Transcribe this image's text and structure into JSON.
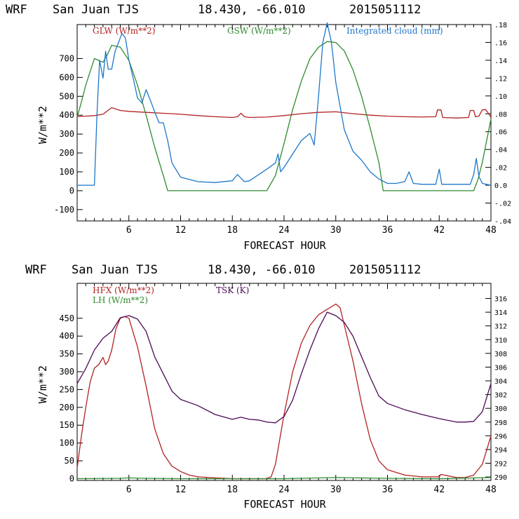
{
  "chart_data": [
    {
      "type": "line",
      "header": [
        "WRF",
        "San Juan TJS",
        "18.430, -66.010",
        "2015051112"
      ],
      "xlabel": "FORECAST HOUR",
      "ylabel": "W/m**2",
      "xlim": [
        0,
        48
      ],
      "ylim": [
        -160,
        880
      ],
      "x_ticks": [
        6,
        12,
        18,
        24,
        30,
        36,
        42,
        48
      ],
      "y_ticks": [
        -100,
        0,
        100,
        200,
        300,
        400,
        500,
        600,
        700
      ],
      "y2lim": [
        -0.04,
        0.18
      ],
      "y2_ticks": [
        -0.04,
        -0.02,
        0.0,
        0.02,
        0.04,
        0.06,
        0.08,
        0.1,
        0.12,
        0.14,
        0.16,
        0.18
      ],
      "y2_tick_labels": [
        "-.04",
        "-.02",
        "0.0",
        ".02",
        ".04",
        ".06",
        ".08",
        ".10",
        ".12",
        ".14",
        ".16",
        ".18"
      ],
      "series": [
        {
          "name": "GLW (W/m**2)",
          "color": "#b22222",
          "axis": "left",
          "x": [
            0,
            1,
            2,
            3,
            4,
            5,
            6,
            8,
            10,
            12,
            14,
            16,
            18,
            18.6,
            19,
            19.4,
            20,
            22,
            24,
            26,
            28,
            30,
            32,
            34,
            36,
            38,
            40,
            41.6,
            41.8,
            42.2,
            42.4,
            44,
            45.4,
            45.6,
            46,
            46.2,
            46.6,
            47,
            47.4,
            48
          ],
          "values": [
            392,
            395,
            398,
            405,
            440,
            425,
            420,
            415,
            410,
            405,
            398,
            392,
            388,
            392,
            410,
            392,
            388,
            390,
            398,
            408,
            415,
            418,
            408,
            400,
            395,
            392,
            390,
            392,
            428,
            428,
            388,
            385,
            388,
            425,
            425,
            392,
            395,
            428,
            430,
            390
          ]
        },
        {
          "name": "GSW (W/m**2)",
          "color": "#2e8b2e",
          "axis": "left",
          "x": [
            0,
            0.5,
            1,
            2,
            3,
            3.5,
            4,
            5,
            6,
            7,
            8,
            9,
            10,
            10.5,
            11,
            12,
            14,
            16,
            18,
            20,
            21,
            22,
            23,
            24,
            25,
            26,
            27,
            28,
            29,
            30,
            31,
            32,
            33,
            34,
            35,
            35.5,
            36,
            38,
            40,
            42,
            44,
            45,
            46,
            46.5,
            47,
            48
          ],
          "values": [
            390,
            470,
            560,
            700,
            680,
            720,
            770,
            760,
            690,
            560,
            400,
            230,
            80,
            0,
            0,
            0,
            0,
            0,
            0,
            0,
            0,
            0,
            80,
            250,
            430,
            580,
            700,
            760,
            790,
            785,
            740,
            640,
            500,
            330,
            150,
            0,
            0,
            0,
            0,
            0,
            0,
            0,
            0,
            60,
            150,
            380
          ]
        },
        {
          "name": "Integrated cloud (mm)",
          "color": "#1f77c9",
          "axis": "right",
          "x": [
            0,
            2,
            2.3,
            2.6,
            3,
            3.3,
            3.6,
            4,
            4.4,
            4.8,
            5.2,
            5.6,
            6,
            6.5,
            7,
            7.5,
            8,
            8.5,
            9,
            9.5,
            10,
            10.5,
            11,
            12,
            14,
            16,
            18,
            18.6,
            19,
            19.4,
            20,
            22,
            23,
            23.3,
            23.6,
            24,
            25,
            26,
            27,
            27.5,
            28,
            28.5,
            29,
            29.5,
            30,
            31,
            32,
            33,
            34,
            35,
            36,
            37,
            38,
            38.5,
            39,
            40,
            41,
            41.6,
            42,
            42.3,
            43,
            44,
            45,
            45.6,
            46,
            46.3,
            46.6,
            47,
            48
          ],
          "values": [
            0,
            0,
            0.08,
            0.14,
            0.12,
            0.15,
            0.13,
            0.13,
            0.15,
            0.16,
            0.17,
            0.165,
            0.14,
            0.12,
            0.098,
            0.092,
            0.107,
            0.095,
            0.082,
            0.07,
            0.07,
            0.05,
            0.025,
            0.009,
            0.004,
            0.003,
            0.005,
            0.012,
            0.008,
            0.004,
            0.005,
            0.018,
            0.025,
            0.035,
            0.015,
            0.02,
            0.035,
            0.05,
            0.058,
            0.045,
            0.1,
            0.16,
            0.182,
            0.16,
            0.115,
            0.062,
            0.038,
            0.028,
            0.015,
            0.007,
            0.002,
            0.002,
            0.004,
            0.015,
            0.002,
            0.001,
            0.001,
            0.001,
            0.018,
            0.001,
            0.001,
            0.001,
            0.001,
            0.001,
            0.012,
            0.03,
            0.01,
            0.002,
            0.0
          ]
        }
      ]
    },
    {
      "type": "line",
      "header": [
        "WRF",
        "San Juan TJS",
        "18.430, -66.010",
        "2015051112"
      ],
      "xlabel": "FORECAST HOUR",
      "ylabel": "W/m**2",
      "xlim": [
        0,
        48
      ],
      "ylim": [
        -5,
        548
      ],
      "x_ticks": [
        6,
        12,
        18,
        24,
        30,
        36,
        42,
        48
      ],
      "y_ticks": [
        0,
        50,
        100,
        150,
        200,
        250,
        300,
        350,
        400,
        450
      ],
      "y2lim": [
        289.5,
        318.2
      ],
      "y2_ticks": [
        290,
        292,
        294,
        296,
        298,
        300,
        302,
        304,
        306,
        308,
        310,
        312,
        314,
        316
      ],
      "y2_tick_labels": [
        "290",
        "292",
        "294",
        "296",
        "298",
        "300",
        "302",
        "304",
        "306",
        "308",
        "310",
        "312",
        "314",
        "316"
      ],
      "series": [
        {
          "name": "HFX (W/m**2)",
          "color": "#b22222",
          "axis": "left",
          "x": [
            0,
            0.5,
            1,
            1.5,
            2,
            2.5,
            3,
            3.3,
            3.6,
            4,
            4.5,
            5,
            5.5,
            6,
            7,
            8,
            9,
            10,
            11,
            12,
            13,
            14,
            16,
            18,
            20,
            22,
            22.5,
            23,
            24,
            25,
            26,
            27,
            28,
            29,
            30,
            30.5,
            31,
            32,
            33,
            34,
            35,
            36,
            38,
            40,
            42,
            42.2,
            44,
            45,
            46,
            47,
            48
          ],
          "values": [
            30,
            120,
            200,
            270,
            310,
            320,
            340,
            320,
            330,
            360,
            420,
            450,
            455,
            450,
            370,
            260,
            140,
            70,
            35,
            20,
            10,
            5,
            2,
            0,
            0,
            0,
            5,
            40,
            180,
            300,
            380,
            430,
            460,
            475,
            490,
            480,
            430,
            330,
            210,
            110,
            50,
            25,
            10,
            5,
            5,
            12,
            3,
            3,
            10,
            40,
            120
          ]
        },
        {
          "name": "LH (W/m**2)",
          "color": "#2e8b2e",
          "axis": "left",
          "x": [
            0,
            5,
            6,
            8,
            12,
            18,
            24,
            28,
            30,
            36,
            42,
            48
          ],
          "values": [
            0,
            1,
            2,
            1,
            0,
            0,
            0,
            2,
            3,
            1,
            0,
            3
          ]
        },
        {
          "name": "TSK (K)",
          "color": "#4b0a55",
          "axis": "right",
          "x": [
            0,
            1,
            2,
            3,
            4,
            5,
            6,
            7,
            8,
            9,
            10,
            11,
            12,
            14,
            16,
            18,
            19,
            20,
            21,
            22,
            23,
            24,
            25,
            26,
            27,
            28,
            29,
            30,
            31,
            32,
            33,
            34,
            35,
            36,
            38,
            40,
            42,
            44,
            45,
            46,
            47,
            48
          ],
          "values": [
            303.6,
            305.8,
            308.5,
            310.2,
            311.2,
            313.2,
            313.5,
            313,
            311.2,
            307.5,
            305,
            302.5,
            301.3,
            300.4,
            299.1,
            298.4,
            298.7,
            298.4,
            298.3,
            298.0,
            297.9,
            298.8,
            301.2,
            305,
            308.5,
            311.6,
            314.0,
            313.5,
            312.5,
            310.5,
            307.5,
            304.5,
            301.8,
            300.7,
            299.8,
            299.1,
            298.5,
            298.0,
            298.0,
            298.1,
            299.5,
            303.6
          ]
        }
      ]
    }
  ]
}
